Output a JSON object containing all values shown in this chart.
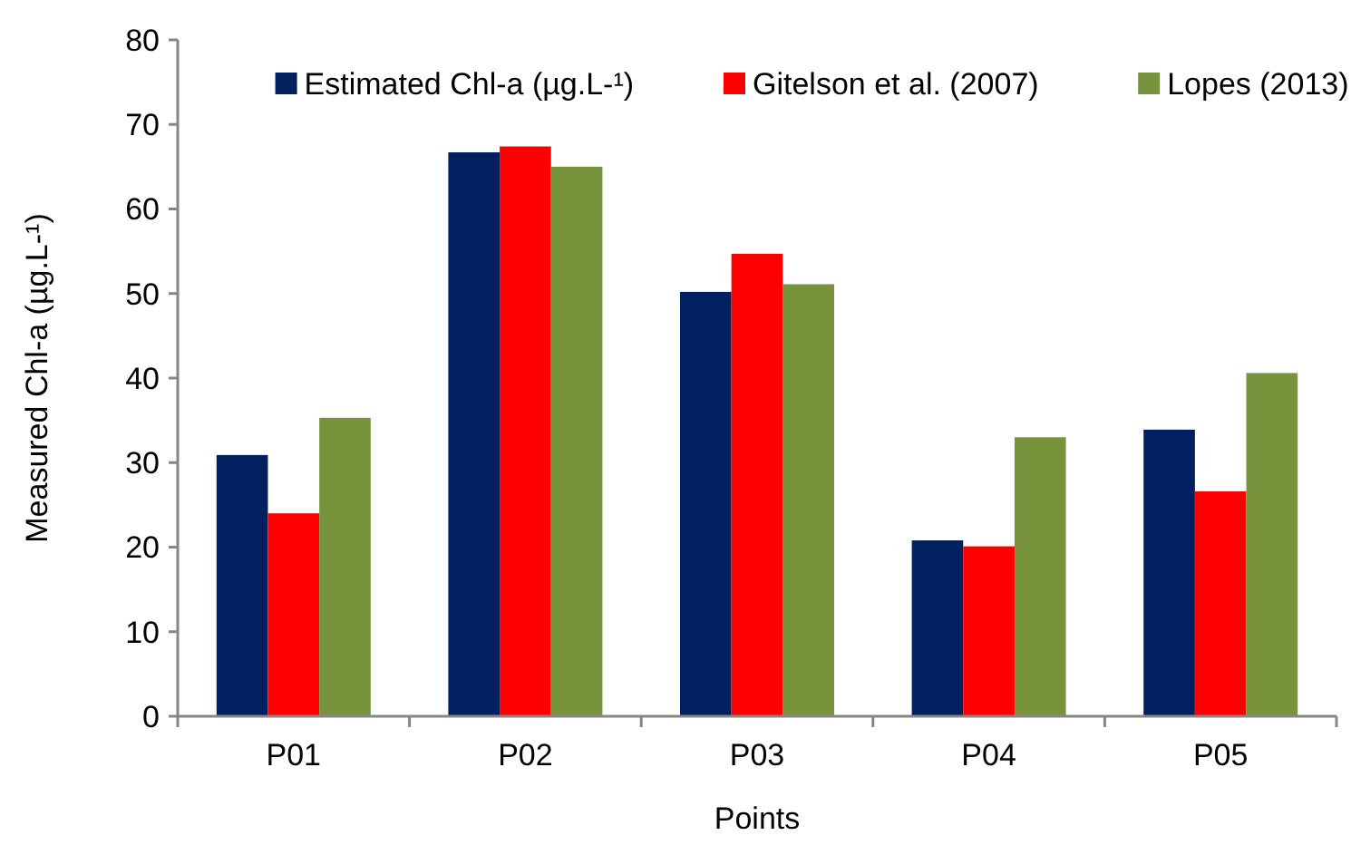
{
  "chart_data": {
    "type": "bar",
    "xlabel": "Points",
    "ylabel": "Measured Chl-a (µg.L-¹)",
    "categories": [
      "P01",
      "P02",
      "P03",
      "P04",
      "P05"
    ],
    "series": [
      {
        "name": "Estimated Chl-a (µg.L-¹)",
        "color": "#002060",
        "values": [
          30.9,
          66.7,
          50.2,
          20.8,
          33.9
        ]
      },
      {
        "name": "Gitelson et al. (2007)",
        "color": "#ff0000",
        "values": [
          24.0,
          67.4,
          54.7,
          20.1,
          26.6
        ]
      },
      {
        "name": "Lopes (2013)",
        "color": "#77933c",
        "values": [
          35.3,
          65.0,
          51.1,
          33.0,
          40.6
        ]
      }
    ],
    "ylim": [
      0,
      80
    ],
    "yticks": [
      0,
      10,
      20,
      30,
      40,
      50,
      60,
      70,
      80
    ],
    "grid": false,
    "legend": "top"
  }
}
